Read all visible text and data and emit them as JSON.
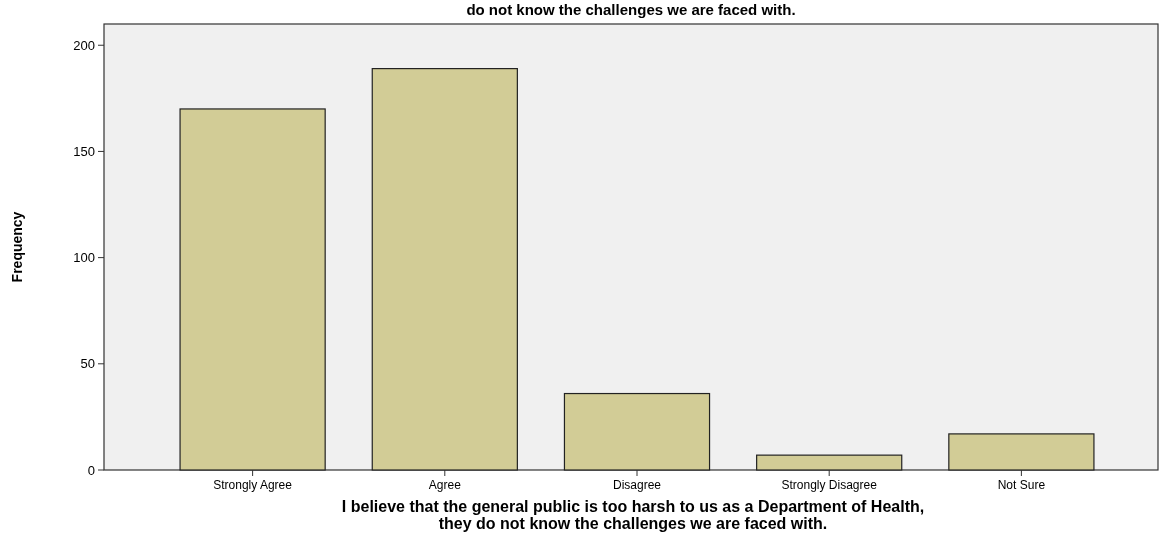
{
  "chart_data": {
    "type": "bar",
    "title": "do not know the challenges we are faced with.",
    "xlabel": "I believe that the general public is too harsh to us as a Department of Health,\nthey do not know the challenges we are faced with.",
    "ylabel": "Frequency",
    "categories": [
      "Strongly Agree",
      "Agree",
      "Disagree",
      "Strongly Disagree",
      "Not Sure"
    ],
    "values": [
      170,
      189,
      36,
      7,
      17
    ],
    "color": "#d2cc96",
    "ylim": [
      0,
      210
    ],
    "yticks": [
      0,
      50,
      100,
      150,
      200
    ],
    "grid": false
  }
}
